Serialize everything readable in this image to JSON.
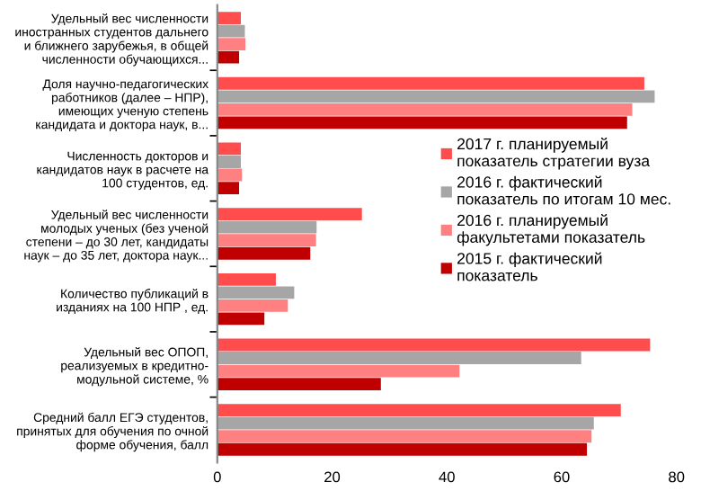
{
  "chart_data": {
    "type": "bar",
    "orientation": "horizontal",
    "categories": [
      "Удельный вес численности\nиностранных студентов дальнего\nи ближнего зарубежья, в общей\nчисленности обучающихся...",
      "Доля научно-педагогических\nработников (далее – НПР),\nимеющих ученую степень\nкандидата и доктора наук, в...",
      "Численность докторов и\nкандидатов наук в расчете на\n100 студентов, ед.",
      "Удельный вес численности\nмолодых ученых (без ученой\nстепени – до 30 лет, кандидаты\nнаук – до 35 лет, доктора наук...",
      "Количество публикаций в\nизданиях на 100 НПР , ед.",
      "Удельный вес ОПОП,\nреализуемых в кредитно-\nмодульной системе, %",
      "Средний балл ЕГЭ студентов,\nпринятых для обучения по очной\nформе обучения, балл"
    ],
    "series": [
      {
        "name": "2017 г. планируемый\nпоказатель стратегии вуза",
        "color": "#ff4d4d",
        "values": [
          4.1,
          74.4,
          4.1,
          25.2,
          10.2,
          75.4,
          70.3
        ]
      },
      {
        "name": "2016 г. фактический\nпоказатель по итогам 10 мес.",
        "color": "#a6a6a6",
        "values": [
          4.8,
          76.2,
          4.1,
          17.3,
          13.4,
          63.4,
          65.6
        ]
      },
      {
        "name": "2016 г. планируемый\nфакультетами показатель",
        "color": "#ff8080",
        "values": [
          4.9,
          72.3,
          4.3,
          17.2,
          12.3,
          42.2,
          65.2
        ]
      },
      {
        "name": "2015 г. фактический\nпоказатель",
        "color": "#c00000",
        "values": [
          3.8,
          71.4,
          3.8,
          16.2,
          8.2,
          28.5,
          64.4
        ]
      }
    ],
    "xlim": [
      0,
      80
    ],
    "xticks": [
      0,
      20,
      40,
      60,
      80
    ],
    "grid": false,
    "legend": "right"
  }
}
